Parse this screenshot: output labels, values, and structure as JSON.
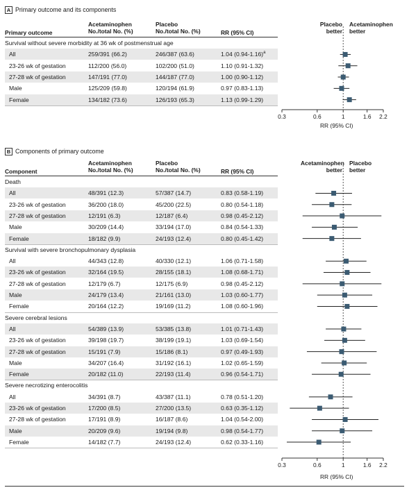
{
  "colors": {
    "marker": "#3b5b72",
    "shade": "#e8e8e8"
  },
  "panelA": {
    "letter": "A",
    "title": "Primary outcome and its components",
    "headers": {
      "col1": "Primary outcome",
      "col2a": "Acetaminophen",
      "col2b": "No./total No. (%)",
      "col3a": "Placebo",
      "col3b": "No./total No. (%)",
      "col4": "RR (95% CI)"
    },
    "favors_left": [
      "Placebo",
      "better"
    ],
    "favors_right": [
      "Acetaminophen",
      "better"
    ],
    "sections": [
      {
        "title": "Survival without severe morbidity at 36 wk of postmenstrual age",
        "rows": [
          {
            "label": "All",
            "acet": "259/391 (66.2)",
            "plac": "246/387 (63.6)",
            "rr": "1.04 (0.94-1.16)",
            "sup": "a"
          },
          {
            "label": "23-26 wk of gestation",
            "acet": "112/200 (56.0)",
            "plac": "102/200 (51.0)",
            "rr": "1.10 (0.91-1.32)"
          },
          {
            "label": "27-28 wk of gestation",
            "acet": "147/191 (77.0)",
            "plac": "144/187 (77.0)",
            "rr": "1.00 (0.90-1.12)"
          },
          {
            "label": "Male",
            "acet": "125/209 (59.8)",
            "plac": "120/194 (61.9)",
            "rr": "0.97 (0.83-1.13)"
          },
          {
            "label": "Female",
            "acet": "134/182 (73.6)",
            "plac": "126/193 (65.3)",
            "rr": "1.13 (0.99-1.29)"
          }
        ]
      }
    ],
    "axis_title": "RR (95% CI)"
  },
  "panelB": {
    "letter": "B",
    "title": "Components of primary outcome",
    "headers": {
      "col1": "Component",
      "col2a": "Acetaminophen",
      "col2b": "No./total No. (%)",
      "col3a": "Placebo",
      "col3b": "No./total No. (%)",
      "col4": "RR (95% CI)"
    },
    "favors_left": [
      "Acetaminophen",
      "better"
    ],
    "favors_right": [
      "Placebo",
      "better"
    ],
    "sections": [
      {
        "title": "Death",
        "rows": [
          {
            "label": "All",
            "acet": "48/391 (12.3)",
            "plac": "57/387 (14.7)",
            "rr": "0.83 (0.58-1.19)"
          },
          {
            "label": "23-26 wk of gestation",
            "acet": "36/200 (18.0)",
            "plac": "45/200 (22.5)",
            "rr": "0.80 (0.54-1.18)"
          },
          {
            "label": "27-28 wk of gestation",
            "acet": "12/191 (6.3)",
            "plac": "12/187 (6.4)",
            "rr": "0.98 (0.45-2.12)"
          },
          {
            "label": "Male",
            "acet": "30/209 (14.4)",
            "plac": "33/194 (17.0)",
            "rr": "0.84 (0.54-1.33)"
          },
          {
            "label": "Female",
            "acet": "18/182 (9.9)",
            "plac": "24/193 (12.4)",
            "rr": "0.80 (0.45-1.42)"
          }
        ]
      },
      {
        "title": "Survival with severe bronchopulmonary dysplasia",
        "rows": [
          {
            "label": "All",
            "acet": "44/343 (12.8)",
            "plac": "40/330 (12.1)",
            "rr": "1.06 (0.71-1.58)"
          },
          {
            "label": "23-26 wk of gestation",
            "acet": "32/164 (19.5)",
            "plac": "28/155 (18.1)",
            "rr": "1.08 (0.68-1.71)"
          },
          {
            "label": "27-28 wk of gestation",
            "acet": "12/179 (6.7)",
            "plac": "12/175 (6.9)",
            "rr": "0.98 (0.45-2.12)"
          },
          {
            "label": "Male",
            "acet": "24/179 (13.4)",
            "plac": "21/161 (13.0)",
            "rr": "1.03 (0.60-1.77)"
          },
          {
            "label": "Female",
            "acet": "20/164 (12.2)",
            "plac": "19/169 (11.2)",
            "rr": "1.08 (0.60-1.96)"
          }
        ]
      },
      {
        "title": "Severe cerebral lesions",
        "rows": [
          {
            "label": "All",
            "acet": "54/389 (13.9)",
            "plac": "53/385 (13.8)",
            "rr": "1.01 (0.71-1.43)"
          },
          {
            "label": "23-26 wk of gestation",
            "acet": "39/198 (19.7)",
            "plac": "38/199 (19.1)",
            "rr": "1.03 (0.69-1.54)"
          },
          {
            "label": "27-28 wk of gestation",
            "acet": "15/191 (7.9)",
            "plac": "15/186 (8.1)",
            "rr": "0.97 (0.49-1.93)"
          },
          {
            "label": "Male",
            "acet": "34/207 (16.4)",
            "plac": "31/192 (16.1)",
            "rr": "1.02 (0.65-1.59)"
          },
          {
            "label": "Female",
            "acet": "20/182 (11.0)",
            "plac": "22/193 (11.4)",
            "rr": "0.96 (0.54-1.71)"
          }
        ]
      },
      {
        "title": "Severe necrotizing enterocolitis",
        "rows": [
          {
            "label": "All",
            "acet": "34/391 (8.7)",
            "plac": "43/387 (11.1)",
            "rr": "0.78 (0.51-1.20)"
          },
          {
            "label": "23-26 wk of gestation",
            "acet": "17/200 (8.5)",
            "plac": "27/200 (13.5)",
            "rr": "0.63 (0.35-1.12)"
          },
          {
            "label": "27-28 wk of gestation",
            "acet": "17/191 (8.9)",
            "plac": "16/187 (8.6)",
            "rr": "1.04 (0.54-2.00)"
          },
          {
            "label": "Male",
            "acet": "20/209 (9.6)",
            "plac": "19/194 (9.8)",
            "rr": "0.98 (0.54-1.77)"
          },
          {
            "label": "Female",
            "acet": "14/182 (7.7)",
            "plac": "24/193 (12.4)",
            "rr": "0.62 (0.33-1.16)"
          }
        ]
      }
    ],
    "axis_title": "RR (95% CI)"
  },
  "chart_data": [
    {
      "type": "forest",
      "panel": "A",
      "x_scale": "log",
      "xlim": [
        0.3,
        2.2
      ],
      "xticks": [
        "0.3",
        "0.6",
        "1",
        "1.6",
        "2.2"
      ],
      "xlabel": "RR (95% CI)",
      "reference_line": 1,
      "points": [
        {
          "rr": 1.04,
          "lo": 0.94,
          "hi": 1.16
        },
        {
          "rr": 1.1,
          "lo": 0.91,
          "hi": 1.32
        },
        {
          "rr": 1.0,
          "lo": 0.9,
          "hi": 1.12
        },
        {
          "rr": 0.97,
          "lo": 0.83,
          "hi": 1.13
        },
        {
          "rr": 1.13,
          "lo": 0.99,
          "hi": 1.29
        }
      ]
    },
    {
      "type": "forest",
      "panel": "B",
      "x_scale": "log",
      "xlim": [
        0.3,
        2.2
      ],
      "xticks": [
        "0.3",
        "0.6",
        "1",
        "1.6",
        "2.2"
      ],
      "xlabel": "RR (95% CI)",
      "reference_line": 1,
      "points": [
        {
          "rr": 0.83,
          "lo": 0.58,
          "hi": 1.19
        },
        {
          "rr": 0.8,
          "lo": 0.54,
          "hi": 1.18
        },
        {
          "rr": 0.98,
          "lo": 0.45,
          "hi": 2.12
        },
        {
          "rr": 0.84,
          "lo": 0.54,
          "hi": 1.33
        },
        {
          "rr": 0.8,
          "lo": 0.45,
          "hi": 1.42
        },
        {
          "rr": 1.06,
          "lo": 0.71,
          "hi": 1.58
        },
        {
          "rr": 1.08,
          "lo": 0.68,
          "hi": 1.71
        },
        {
          "rr": 0.98,
          "lo": 0.45,
          "hi": 2.12
        },
        {
          "rr": 1.03,
          "lo": 0.6,
          "hi": 1.77
        },
        {
          "rr": 1.08,
          "lo": 0.6,
          "hi": 1.96
        },
        {
          "rr": 1.01,
          "lo": 0.71,
          "hi": 1.43
        },
        {
          "rr": 1.03,
          "lo": 0.69,
          "hi": 1.54
        },
        {
          "rr": 0.97,
          "lo": 0.49,
          "hi": 1.93
        },
        {
          "rr": 1.02,
          "lo": 0.65,
          "hi": 1.59
        },
        {
          "rr": 0.96,
          "lo": 0.54,
          "hi": 1.71
        },
        {
          "rr": 0.78,
          "lo": 0.51,
          "hi": 1.2
        },
        {
          "rr": 0.63,
          "lo": 0.35,
          "hi": 1.12
        },
        {
          "rr": 1.04,
          "lo": 0.54,
          "hi": 2.0
        },
        {
          "rr": 0.98,
          "lo": 0.54,
          "hi": 1.77
        },
        {
          "rr": 0.62,
          "lo": 0.33,
          "hi": 1.16
        }
      ]
    }
  ]
}
